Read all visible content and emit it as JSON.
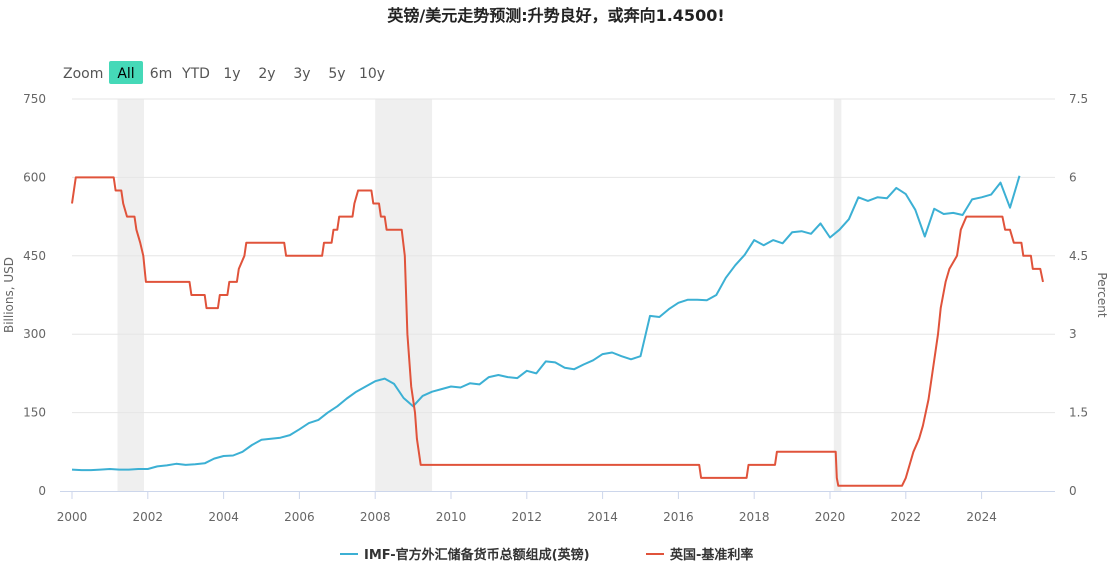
{
  "title": "英镑/美元走势预测:升势良好，或奔向1.4500!",
  "zoom": {
    "label": "Zoom",
    "buttons": [
      "All",
      "6m",
      "YTD",
      "1y",
      "2y",
      "3y",
      "5y",
      "10y"
    ],
    "active": "All"
  },
  "colors": {
    "series_reserves": "#3cb0d4",
    "series_rate": "#e0533b",
    "recession_band": "#efefef",
    "active_button": "#45d9b8",
    "grid": "#e6e6e6",
    "axis_text": "#666666"
  },
  "chart_data": {
    "type": "line",
    "title": "英镑/美元走势预测:升势良好，或奔向1.4500!",
    "x_range": [
      2000,
      2025.8
    ],
    "x_ticks": [
      2000,
      2002,
      2004,
      2006,
      2008,
      2010,
      2012,
      2014,
      2016,
      2018,
      2020,
      2022,
      2024
    ],
    "y_left": {
      "label": "Billions, USD",
      "range": [
        0,
        750
      ],
      "ticks": [
        0,
        150,
        300,
        450,
        600,
        750
      ]
    },
    "y_right": {
      "label": "Percent",
      "range": [
        0,
        7.5
      ],
      "ticks": [
        0,
        1.5,
        3,
        4.5,
        6,
        7.5
      ]
    },
    "grid": true,
    "legend_position": "bottom-center",
    "recession_bands": [
      [
        2001.2,
        2001.9
      ],
      [
        2008.0,
        2009.5
      ],
      [
        2020.1,
        2020.3
      ]
    ],
    "series": [
      {
        "name": "IMF-官方外汇储备货币总额组成(英镑)",
        "axis": "left",
        "points": [
          [
            2000.0,
            41
          ],
          [
            2000.25,
            40
          ],
          [
            2000.5,
            40
          ],
          [
            2000.75,
            41
          ],
          [
            2001.0,
            42
          ],
          [
            2001.25,
            41
          ],
          [
            2001.5,
            41
          ],
          [
            2001.75,
            42
          ],
          [
            2002.0,
            42
          ],
          [
            2002.25,
            47
          ],
          [
            2002.5,
            49
          ],
          [
            2002.75,
            52
          ],
          [
            2003.0,
            50
          ],
          [
            2003.25,
            51
          ],
          [
            2003.5,
            53
          ],
          [
            2003.75,
            62
          ],
          [
            2004.0,
            67
          ],
          [
            2004.25,
            68
          ],
          [
            2004.5,
            75
          ],
          [
            2004.75,
            88
          ],
          [
            2005.0,
            98
          ],
          [
            2005.25,
            100
          ],
          [
            2005.5,
            102
          ],
          [
            2005.75,
            107
          ],
          [
            2006.0,
            118
          ],
          [
            2006.25,
            130
          ],
          [
            2006.5,
            136
          ],
          [
            2006.75,
            150
          ],
          [
            2007.0,
            162
          ],
          [
            2007.25,
            177
          ],
          [
            2007.5,
            190
          ],
          [
            2007.75,
            200
          ],
          [
            2008.0,
            210
          ],
          [
            2008.25,
            215
          ],
          [
            2008.5,
            205
          ],
          [
            2008.75,
            178
          ],
          [
            2009.0,
            162
          ],
          [
            2009.25,
            182
          ],
          [
            2009.5,
            190
          ],
          [
            2009.75,
            195
          ],
          [
            2010.0,
            200
          ],
          [
            2010.25,
            198
          ],
          [
            2010.5,
            206
          ],
          [
            2010.75,
            204
          ],
          [
            2011.0,
            218
          ],
          [
            2011.25,
            222
          ],
          [
            2011.5,
            218
          ],
          [
            2011.75,
            216
          ],
          [
            2012.0,
            230
          ],
          [
            2012.25,
            225
          ],
          [
            2012.5,
            248
          ],
          [
            2012.75,
            246
          ],
          [
            2013.0,
            236
          ],
          [
            2013.25,
            233
          ],
          [
            2013.5,
            242
          ],
          [
            2013.75,
            250
          ],
          [
            2014.0,
            262
          ],
          [
            2014.25,
            265
          ],
          [
            2014.5,
            258
          ],
          [
            2014.75,
            252
          ],
          [
            2015.0,
            258
          ],
          [
            2015.25,
            335
          ],
          [
            2015.5,
            333
          ],
          [
            2015.75,
            348
          ],
          [
            2016.0,
            360
          ],
          [
            2016.25,
            366
          ],
          [
            2016.5,
            366
          ],
          [
            2016.75,
            365
          ],
          [
            2017.0,
            375
          ],
          [
            2017.25,
            408
          ],
          [
            2017.5,
            432
          ],
          [
            2017.75,
            452
          ],
          [
            2018.0,
            480
          ],
          [
            2018.25,
            470
          ],
          [
            2018.5,
            480
          ],
          [
            2018.75,
            474
          ],
          [
            2019.0,
            495
          ],
          [
            2019.25,
            497
          ],
          [
            2019.5,
            492
          ],
          [
            2019.75,
            512
          ],
          [
            2020.0,
            485
          ],
          [
            2020.25,
            500
          ],
          [
            2020.5,
            520
          ],
          [
            2020.75,
            562
          ],
          [
            2021.0,
            555
          ],
          [
            2021.25,
            562
          ],
          [
            2021.5,
            560
          ],
          [
            2021.75,
            580
          ],
          [
            2022.0,
            568
          ],
          [
            2022.25,
            538
          ],
          [
            2022.5,
            487
          ],
          [
            2022.75,
            540
          ],
          [
            2023.0,
            530
          ],
          [
            2023.25,
            532
          ],
          [
            2023.5,
            528
          ],
          [
            2023.75,
            558
          ],
          [
            2024.0,
            562
          ],
          [
            2024.25,
            567
          ],
          [
            2024.5,
            590
          ],
          [
            2024.75,
            542
          ],
          [
            2025.0,
            603
          ]
        ]
      },
      {
        "name": "英国-基准利率",
        "axis": "right",
        "points": [
          [
            2000.0,
            5.5
          ],
          [
            2000.1,
            6.0
          ],
          [
            2001.1,
            6.0
          ],
          [
            2001.15,
            5.75
          ],
          [
            2001.3,
            5.75
          ],
          [
            2001.35,
            5.5
          ],
          [
            2001.45,
            5.25
          ],
          [
            2001.65,
            5.25
          ],
          [
            2001.7,
            5.0
          ],
          [
            2001.8,
            4.75
          ],
          [
            2001.88,
            4.5
          ],
          [
            2001.95,
            4.0
          ],
          [
            2003.1,
            4.0
          ],
          [
            2003.15,
            3.75
          ],
          [
            2003.5,
            3.75
          ],
          [
            2003.55,
            3.5
          ],
          [
            2003.85,
            3.5
          ],
          [
            2003.9,
            3.75
          ],
          [
            2004.1,
            3.75
          ],
          [
            2004.15,
            4.0
          ],
          [
            2004.35,
            4.0
          ],
          [
            2004.4,
            4.25
          ],
          [
            2004.55,
            4.5
          ],
          [
            2004.6,
            4.75
          ],
          [
            2005.6,
            4.75
          ],
          [
            2005.65,
            4.5
          ],
          [
            2006.6,
            4.5
          ],
          [
            2006.65,
            4.75
          ],
          [
            2006.85,
            4.75
          ],
          [
            2006.9,
            5.0
          ],
          [
            2007.0,
            5.0
          ],
          [
            2007.05,
            5.25
          ],
          [
            2007.4,
            5.25
          ],
          [
            2007.45,
            5.5
          ],
          [
            2007.55,
            5.75
          ],
          [
            2007.9,
            5.75
          ],
          [
            2007.95,
            5.5
          ],
          [
            2008.1,
            5.5
          ],
          [
            2008.15,
            5.25
          ],
          [
            2008.25,
            5.25
          ],
          [
            2008.3,
            5.0
          ],
          [
            2008.7,
            5.0
          ],
          [
            2008.78,
            4.5
          ],
          [
            2008.85,
            3.0
          ],
          [
            2008.95,
            2.0
          ],
          [
            2009.05,
            1.5
          ],
          [
            2009.1,
            1.0
          ],
          [
            2009.2,
            0.5
          ],
          [
            2016.55,
            0.5
          ],
          [
            2016.6,
            0.25
          ],
          [
            2017.8,
            0.25
          ],
          [
            2017.85,
            0.5
          ],
          [
            2018.55,
            0.5
          ],
          [
            2018.6,
            0.75
          ],
          [
            2020.15,
            0.75
          ],
          [
            2020.18,
            0.25
          ],
          [
            2020.22,
            0.1
          ],
          [
            2021.9,
            0.1
          ],
          [
            2022.0,
            0.25
          ],
          [
            2022.1,
            0.5
          ],
          [
            2022.2,
            0.75
          ],
          [
            2022.35,
            1.0
          ],
          [
            2022.45,
            1.25
          ],
          [
            2022.6,
            1.75
          ],
          [
            2022.7,
            2.25
          ],
          [
            2022.85,
            3.0
          ],
          [
            2022.92,
            3.5
          ],
          [
            2023.05,
            4.0
          ],
          [
            2023.15,
            4.25
          ],
          [
            2023.35,
            4.5
          ],
          [
            2023.45,
            5.0
          ],
          [
            2023.6,
            5.25
          ],
          [
            2024.55,
            5.25
          ],
          [
            2024.62,
            5.0
          ],
          [
            2024.75,
            5.0
          ],
          [
            2024.85,
            4.75
          ],
          [
            2025.05,
            4.75
          ],
          [
            2025.1,
            4.5
          ],
          [
            2025.3,
            4.5
          ],
          [
            2025.35,
            4.25
          ],
          [
            2025.55,
            4.25
          ],
          [
            2025.62,
            4.0
          ]
        ]
      }
    ]
  }
}
